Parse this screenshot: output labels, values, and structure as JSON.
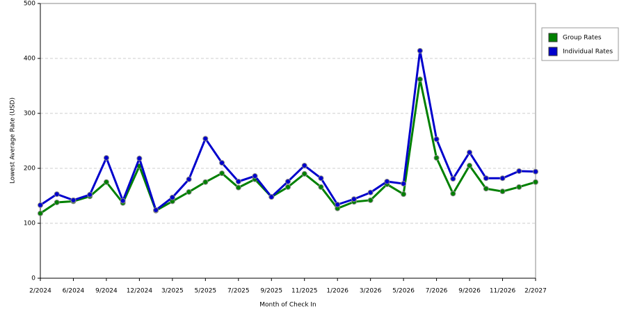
{
  "chart_data": {
    "type": "line",
    "xlabel": "Month of Check In",
    "ylabel": "Lowest Average Rate (USD)",
    "categories": [
      "2/2024",
      null,
      "6/2024",
      null,
      "9/2024",
      null,
      "12/2024",
      null,
      "3/2025",
      null,
      "5/2025",
      null,
      "7/2025",
      null,
      "9/2025",
      null,
      "11/2025",
      null,
      "1/2026",
      null,
      "3/2026",
      null,
      "5/2026",
      null,
      "7/2026",
      null,
      "9/2026",
      null,
      "11/2026",
      null,
      "2/2027"
    ],
    "series": [
      {
        "name": "Group Rates",
        "color": "#008000",
        "values": [
          118,
          138,
          140,
          149,
          175,
          137,
          204,
          123,
          140,
          157,
          175,
          191,
          165,
          180,
          148,
          166,
          190,
          166,
          127,
          139,
          142,
          171,
          153,
          362,
          219,
          154,
          205,
          163,
          158,
          166,
          175
        ]
      },
      {
        "name": "Individual Rates",
        "color": "#0000cc",
        "values": [
          133,
          153,
          142,
          152,
          219,
          141,
          218,
          124,
          147,
          180,
          254,
          210,
          176,
          186,
          148,
          176,
          205,
          182,
          134,
          144,
          156,
          176,
          172,
          414,
          253,
          181,
          229,
          182,
          182,
          195,
          194
        ]
      }
    ],
    "ylim": [
      0,
      500
    ],
    "yticks": [
      0,
      100,
      200,
      300,
      400,
      500
    ],
    "grid": true,
    "legend": "right"
  }
}
